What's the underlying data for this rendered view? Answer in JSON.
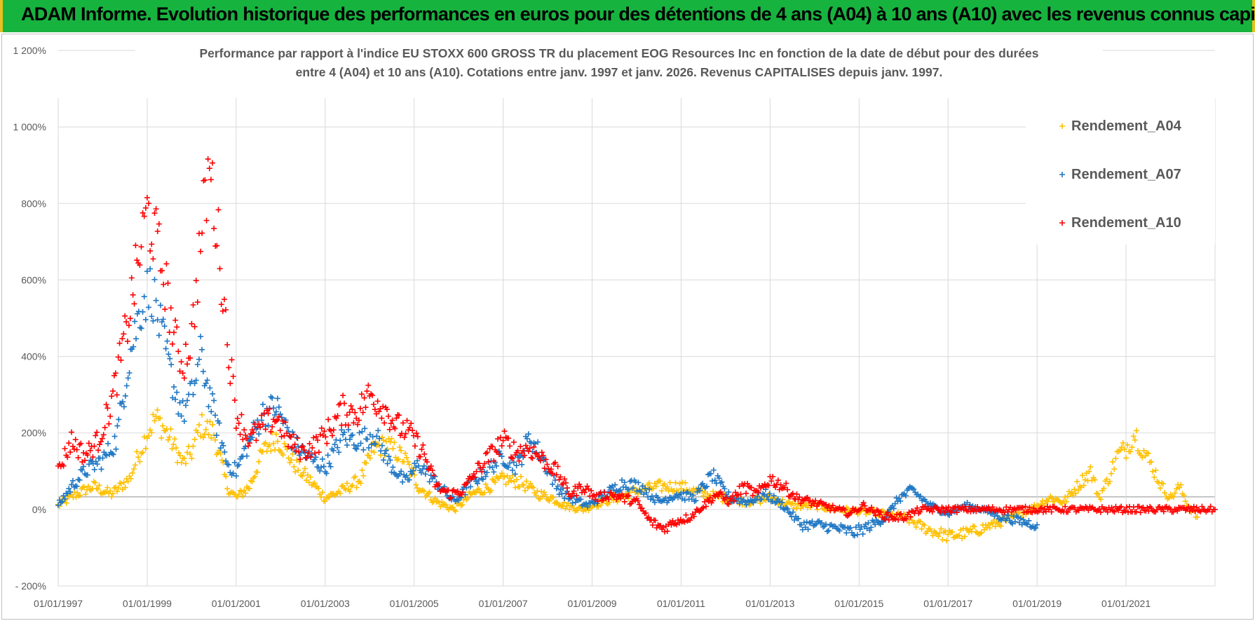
{
  "banner": {
    "title": "ADAM Informe. Evolution historique des performances en euros pour des détentions de 4 ans (A04) à 10 ans (A10) avec les revenus connus capitalisés"
  },
  "colors": {
    "banner": "#17b33f",
    "A04": "#ffc000",
    "A07": "#1f77c4",
    "A10": "#ff0000"
  },
  "chart_data": {
    "type": "scatter",
    "title_line1": "Performance par rapport à l'indice EU STOXX 600 GROSS TR  du placement EOG Resources Inc en fonction de la date de début pour des durées",
    "title_line2": "entre 4 (A04) et 10 ans (A10).  Cotations entre janv. 1997 et janv. 2026. Revenus CAPITALISES  depuis janv. 1997.",
    "xlabel": "",
    "ylabel": "",
    "xlim": [
      1997.0,
      2023.0
    ],
    "ylim": [
      -200,
      1200
    ],
    "y_ticks": [
      -200,
      0,
      200,
      400,
      600,
      800,
      1000,
      1200
    ],
    "y_tick_labels": [
      "- 200%",
      "0%",
      "200%",
      "400%",
      "600%",
      "800%",
      "1 000%",
      "1 200%"
    ],
    "x_ticks": [
      1997,
      1999,
      2001,
      2003,
      2005,
      2007,
      2009,
      2011,
      2013,
      2015,
      2017,
      2019,
      2021
    ],
    "x_tick_labels": [
      "01/01/1997",
      "01/01/1999",
      "01/01/2001",
      "01/01/2003",
      "01/01/2005",
      "01/01/2007",
      "01/01/2009",
      "01/01/2011",
      "01/01/2013",
      "01/01/2015",
      "01/01/2017",
      "01/01/2019",
      "01/01/2021"
    ],
    "grid": true,
    "legend": "top-right",
    "marker": "+",
    "series": [
      {
        "name": "Rendement_A04",
        "color": "#ffc000",
        "x": [
          1997.0,
          1997.4,
          1997.8,
          1998.2,
          1998.6,
          1998.8,
          1999.0,
          1999.2,
          1999.5,
          1999.8,
          2000.0,
          2000.2,
          2000.5,
          2000.8,
          2001.0,
          2001.3,
          2001.6,
          2001.9,
          2002.3,
          2002.7,
          2003.0,
          2003.4,
          2003.8,
          2004.1,
          2004.4,
          2004.8,
          2005.1,
          2005.5,
          2005.9,
          2006.3,
          2006.7,
          2007.0,
          2007.4,
          2007.8,
          2008.1,
          2008.4,
          2008.8,
          2009.2,
          2009.6,
          2010.0,
          2010.5,
          2011.0,
          2011.5,
          2012.0,
          2012.5,
          2013.0,
          2013.5,
          2014.0,
          2014.5,
          2015.0,
          2015.5,
          2016.0,
          2016.5,
          2017.0,
          2017.5,
          2018.0,
          2018.5,
          2019.0,
          2019.3,
          2019.6,
          2019.9,
          2020.2,
          2020.4,
          2020.6,
          2020.8,
          2021.0,
          2021.2,
          2021.4,
          2021.6,
          2021.8,
          2022.0,
          2022.2,
          2022.4,
          2022.6
        ],
        "values": [
          10,
          40,
          60,
          40,
          80,
          140,
          200,
          240,
          190,
          120,
          150,
          220,
          200,
          60,
          30,
          60,
          150,
          190,
          120,
          70,
          30,
          50,
          80,
          160,
          170,
          130,
          60,
          20,
          0,
          40,
          60,
          80,
          70,
          40,
          30,
          10,
          0,
          20,
          30,
          50,
          60,
          60,
          40,
          30,
          20,
          30,
          10,
          10,
          0,
          -5,
          -10,
          -20,
          -50,
          -70,
          -60,
          -40,
          -20,
          10,
          30,
          20,
          60,
          100,
          30,
          80,
          140,
          160,
          200,
          150,
          110,
          60,
          30,
          60,
          10,
          -20
        ]
      },
      {
        "name": "Rendement_A07",
        "color": "#1f77c4",
        "x": [
          1997.0,
          1997.3,
          1997.6,
          1998.0,
          1998.3,
          1998.6,
          1998.9,
          1999.1,
          1999.3,
          1999.6,
          1999.8,
          2000.0,
          2000.2,
          2000.5,
          2000.8,
          2001.0,
          2001.3,
          2001.6,
          2001.9,
          2002.3,
          2002.7,
          2003.0,
          2003.4,
          2003.8,
          2004.1,
          2004.4,
          2004.8,
          2005.1,
          2005.5,
          2005.9,
          2006.3,
          2006.7,
          2007.0,
          2007.3,
          2007.6,
          2007.9,
          2008.2,
          2008.5,
          2008.9,
          2009.3,
          2009.7,
          2010.1,
          2010.5,
          2010.9,
          2011.3,
          2011.7,
          2012.1,
          2012.5,
          2012.9,
          2013.3,
          2013.7,
          2014.1,
          2014.5,
          2014.9,
          2015.3,
          2015.6,
          2015.9,
          2016.2,
          2016.6,
          2017.0,
          2017.4,
          2017.8,
          2018.2,
          2018.6,
          2019.0
        ],
        "values": [
          10,
          60,
          100,
          130,
          180,
          400,
          550,
          580,
          470,
          320,
          250,
          300,
          400,
          250,
          120,
          100,
          180,
          250,
          270,
          170,
          130,
          110,
          190,
          180,
          200,
          130,
          70,
          120,
          70,
          20,
          70,
          110,
          140,
          110,
          190,
          130,
          60,
          30,
          10,
          40,
          70,
          60,
          20,
          40,
          30,
          90,
          30,
          20,
          40,
          10,
          -40,
          -40,
          -50,
          -60,
          -40,
          -20,
          30,
          50,
          10,
          -10,
          10,
          0,
          -20,
          -30,
          -40
        ]
      },
      {
        "name": "Rendement_A10",
        "color": "#ff0000",
        "x": [
          1997.0,
          1997.3,
          1997.6,
          1997.9,
          1998.2,
          1998.5,
          1998.8,
          1999.0,
          1999.2,
          1999.4,
          1999.6,
          1999.8,
          2000.0,
          2000.2,
          2000.4,
          2000.6,
          2000.8,
          2001.0,
          2001.3,
          2001.6,
          2001.9,
          2002.2,
          2002.5,
          2002.8,
          2003.1,
          2003.4,
          2003.7,
          2004.0,
          2004.3,
          2004.6,
          2004.9,
          2005.2,
          2005.5,
          2005.8,
          2006.1,
          2006.4,
          2006.7,
          2007.0,
          2007.3,
          2007.6,
          2007.9,
          2008.2,
          2008.5,
          2008.8,
          2009.1,
          2009.4,
          2009.7,
          2010.0,
          2010.3,
          2010.6,
          2010.9,
          2011.2,
          2011.5,
          2011.8,
          2012.1,
          2012.4,
          2012.7,
          2013.0,
          2013.3,
          2013.6,
          2013.9,
          2014.2,
          2014.5,
          2014.8,
          2015.1,
          2015.4,
          2015.7,
          2016.0,
          2016.4,
          2016.8,
          2017.2,
          2017.6,
          2018.0,
          2018.4,
          2018.8,
          2019.2,
          2019.6,
          2020.0,
          2020.4,
          2020.8,
          2021.2,
          2021.6,
          2022.0,
          2022.4,
          2022.8,
          2023.0
        ],
        "values": [
          100,
          180,
          140,
          180,
          280,
          450,
          650,
          780,
          700,
          600,
          450,
          380,
          450,
          700,
          900,
          700,
          450,
          250,
          180,
          220,
          240,
          180,
          150,
          170,
          210,
          260,
          250,
          300,
          270,
          220,
          200,
          150,
          60,
          40,
          50,
          100,
          140,
          180,
          150,
          160,
          130,
          100,
          40,
          60,
          30,
          40,
          30,
          20,
          -30,
          -50,
          -30,
          -20,
          10,
          40,
          20,
          60,
          40,
          80,
          60,
          30,
          20,
          10,
          0,
          -10,
          10,
          -10,
          -20,
          -20,
          0,
          0,
          0,
          0,
          0,
          0,
          0,
          0,
          0,
          0,
          0,
          0,
          0,
          0,
          0,
          0,
          0,
          0
        ]
      }
    ]
  }
}
